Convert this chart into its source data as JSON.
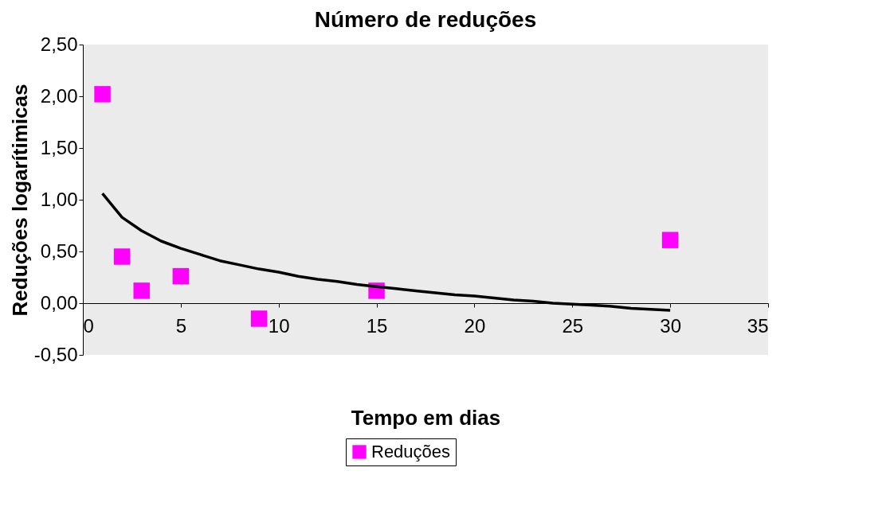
{
  "chart_data": {
    "type": "scatter",
    "title": "Número de reduções",
    "xlabel": "Tempo em dias",
    "ylabel": "Reduções logarítimicas",
    "xlim": [
      0,
      35
    ],
    "xticks": [
      0,
      5,
      10,
      15,
      20,
      25,
      30,
      35
    ],
    "ylim": [
      -0.5,
      2.5
    ],
    "yticks": [
      {
        "value": -0.5,
        "label": "-0,50"
      },
      {
        "value": 0,
        "label": "0,00"
      },
      {
        "value": 0.5,
        "label": "0,50"
      },
      {
        "value": 1,
        "label": "1,00"
      },
      {
        "value": 1.5,
        "label": "1,50"
      },
      {
        "value": 2,
        "label": "2,00"
      },
      {
        "value": 2.5,
        "label": "2,50"
      }
    ],
    "grid": false,
    "legend": "bottom",
    "series": [
      {
        "name": "Reduções",
        "marker": "square",
        "color": "#ff00ff",
        "x": [
          1,
          2,
          3,
          5,
          9,
          15,
          30
        ],
        "values": [
          2.02,
          0.45,
          0.12,
          0.26,
          -0.15,
          0.12,
          0.61
        ]
      },
      {
        "type": "line",
        "marker": "none",
        "color": "#000000",
        "line_style": "solid",
        "x": [
          1,
          2,
          3,
          4,
          5,
          6,
          7,
          8,
          9,
          10,
          11,
          12,
          13,
          14,
          15,
          16,
          17,
          18,
          19,
          20,
          21,
          22,
          23,
          24,
          25,
          26,
          27,
          28,
          29,
          30
        ],
        "values": [
          1.06,
          0.83,
          0.7,
          0.6,
          0.53,
          0.47,
          0.41,
          0.37,
          0.33,
          0.3,
          0.26,
          0.23,
          0.21,
          0.18,
          0.16,
          0.14,
          0.12,
          0.1,
          0.08,
          0.07,
          0.05,
          0.03,
          0.02,
          0.0,
          -0.01,
          -0.02,
          -0.03,
          -0.05,
          -0.06,
          -0.07
        ]
      }
    ]
  }
}
